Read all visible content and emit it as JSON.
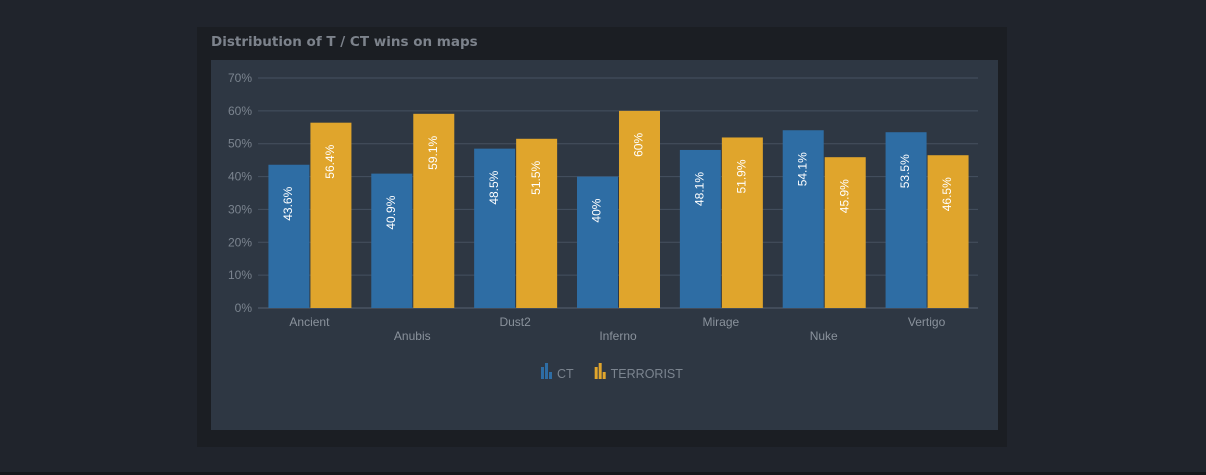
{
  "chart_data": {
    "type": "bar",
    "title": "Distribution of T / CT wins on maps",
    "categories": [
      "Ancient",
      "Anubis",
      "Dust2",
      "Inferno",
      "Mirage",
      "Nuke",
      "Vertigo"
    ],
    "series": [
      {
        "name": "CT",
        "color": "#2e6da4",
        "values": [
          43.6,
          40.9,
          48.5,
          40,
          48.1,
          54.1,
          53.5
        ],
        "labels": [
          "43.6%",
          "40.9%",
          "48.5%",
          "40%",
          "48.1%",
          "54.1%",
          "53.5%"
        ]
      },
      {
        "name": "TERRORIST",
        "color": "#e0a52c",
        "values": [
          56.4,
          59.1,
          51.5,
          60,
          51.9,
          45.9,
          46.5
        ],
        "labels": [
          "56.4%",
          "59.1%",
          "51.5%",
          "60%",
          "51.9%",
          "45.9%",
          "46.5%"
        ]
      }
    ],
    "ylim": [
      0,
      70
    ],
    "yticks": [
      "0%",
      "10%",
      "20%",
      "30%",
      "40%",
      "50%",
      "60%",
      "70%"
    ],
    "grid": true,
    "legend": "bottom-center",
    "legend_icon": "bar-chart-icon"
  }
}
